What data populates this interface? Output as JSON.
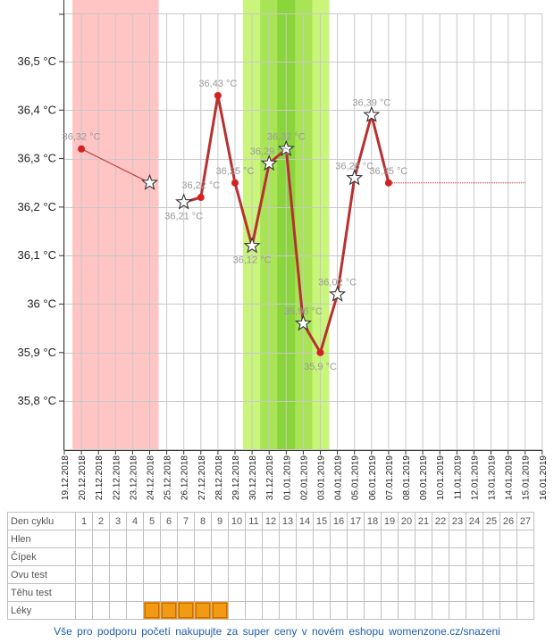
{
  "chart_data": {
    "type": "line",
    "title": "",
    "xlabel": "",
    "ylabel": "",
    "ylim": [
      35.7,
      36.8
    ],
    "y_ticks": [
      35.8,
      35.9,
      36.0,
      36.1,
      36.2,
      36.3,
      36.4,
      36.5
    ],
    "y_tick_labels": [
      "35,8 °C",
      "35,9 °C",
      "36 °C",
      "36,1 °C",
      "36,2 °C",
      "36,3 °C",
      "36,4 °C",
      "36,5 °C"
    ],
    "x_dates": [
      "19.12.2018",
      "20.12.2018",
      "21.12.2018",
      "22.12.2018",
      "23.12.2018",
      "24.12.2018",
      "25.12.2018",
      "26.12.2018",
      "27.12.2018",
      "28.12.2018",
      "29.12.2018",
      "30.12.2018",
      "31.12.2018",
      "01.01.2019",
      "02.01.2019",
      "03.01.2019",
      "04.01.2019",
      "05.01.2019",
      "06.01.2019",
      "07.01.2019",
      "08.01.2019",
      "09.01.2019",
      "10.01.2019",
      "11.01.2019",
      "12.01.2019",
      "13.01.2019",
      "14.01.2019",
      "15.01.2019",
      "16.01.2019"
    ],
    "grid": true,
    "colors": {
      "line": "#b83030",
      "marker": "#d42020",
      "guide": "#c0262b",
      "menstruation": "#ffc4c4",
      "fertile": "#c8f57a",
      "fertile_mid": "#a8e455",
      "ovulation": "#8ad43c"
    },
    "menstruation_days": [
      1,
      5
    ],
    "fertile_days": [
      11,
      15
    ],
    "fertile_mid_days": [
      12,
      14
    ],
    "ovulation_day": [
      13,
      13
    ],
    "dashed_guide": {
      "from_day": 19,
      "to_day": 27,
      "value": 36.25
    },
    "points": [
      {
        "day": 1,
        "date": "20.12.2018",
        "value": 36.32,
        "label": "36,32 °C",
        "marker": "dot"
      },
      {
        "day": 5,
        "date": "24.12.2018",
        "value": 36.25,
        "label": "",
        "marker": "star"
      },
      {
        "day": 7,
        "date": "26.12.2018",
        "value": 36.21,
        "label": "36,21 °C",
        "marker": "star"
      },
      {
        "day": 8,
        "date": "27.12.2018",
        "value": 36.22,
        "label": "36,22 °C",
        "marker": "dot"
      },
      {
        "day": 9,
        "date": "28.12.2018",
        "value": 36.43,
        "label": "36,43 °C",
        "marker": "dot"
      },
      {
        "day": 10,
        "date": "29.12.2018",
        "value": 36.25,
        "label": "36,25 °C",
        "marker": "dot"
      },
      {
        "day": 11,
        "date": "30.12.2018",
        "value": 36.12,
        "label": "36,12 °C",
        "marker": "star"
      },
      {
        "day": 12,
        "date": "31.12.2018",
        "value": 36.29,
        "label": "36,29 °C",
        "marker": "star"
      },
      {
        "day": 13,
        "date": "01.01.2019",
        "value": 36.32,
        "label": "36,32 °C",
        "marker": "star"
      },
      {
        "day": 14,
        "date": "02.01.2019",
        "value": 35.96,
        "label": "35,96 °C",
        "marker": "star"
      },
      {
        "day": 15,
        "date": "03.01.2019",
        "value": 35.9,
        "label": "35,9 °C",
        "marker": "dot"
      },
      {
        "day": 16,
        "date": "04.01.2019",
        "value": 36.02,
        "label": "36,02 °C",
        "marker": "star"
      },
      {
        "day": 17,
        "date": "05.01.2019",
        "value": 36.26,
        "label": "36,26 °C",
        "marker": "star"
      },
      {
        "day": 18,
        "date": "06.01.2019",
        "value": 36.39,
        "label": "36,39 °C",
        "marker": "star"
      },
      {
        "day": 19,
        "date": "07.01.2019",
        "value": 36.25,
        "label": "36,25 °C",
        "marker": "dot"
      }
    ]
  },
  "table": {
    "days": [
      "1",
      "2",
      "3",
      "4",
      "5",
      "6",
      "7",
      "8",
      "9",
      "10",
      "11",
      "12",
      "13",
      "14",
      "15",
      "16",
      "17",
      "18",
      "19",
      "20",
      "21",
      "22",
      "23",
      "24",
      "25",
      "26",
      "27"
    ],
    "rows": [
      {
        "label": "Den cyklu",
        "key": "day_numbers"
      },
      {
        "label": "Hlen",
        "key": "hlen"
      },
      {
        "label": "Čípek",
        "key": "cipek"
      },
      {
        "label": "Ovu test",
        "key": "ovu_test"
      },
      {
        "label": "Těhu test",
        "key": "tehu_test"
      },
      {
        "label": "Léky",
        "key": "leky"
      }
    ],
    "leky_days": [
      5,
      6,
      7,
      8,
      9
    ]
  },
  "footer": {
    "text": "Vše pro podporu početí nakupujte za super ceny v novém eshopu womenzone.cz/snazeni"
  }
}
